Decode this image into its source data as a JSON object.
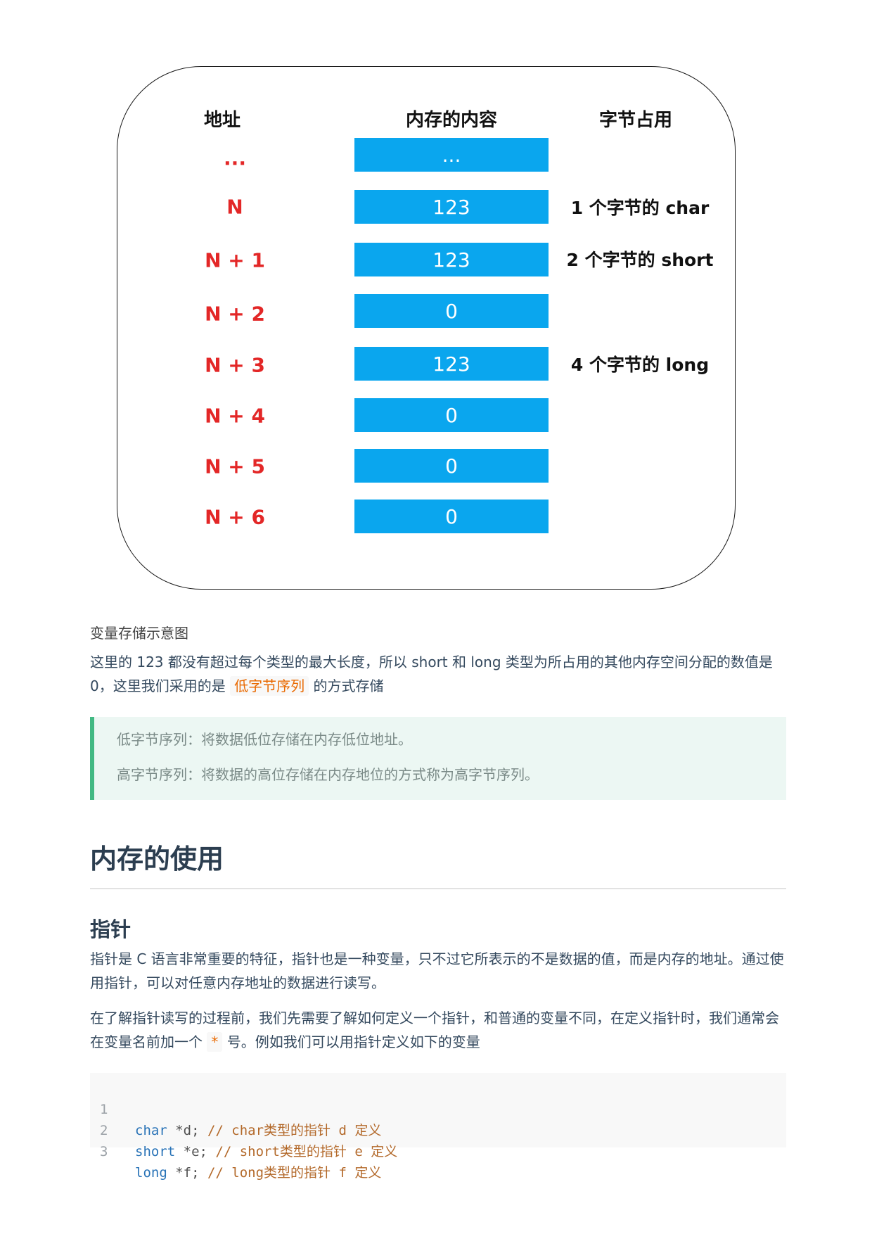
{
  "diagram": {
    "headers": {
      "address": "地址",
      "content": "内存的内容",
      "bytes": "字节占用"
    },
    "rows": [
      {
        "address": "...",
        "value": "..."
      },
      {
        "address": "N",
        "value": "123"
      },
      {
        "address": "N + 1",
        "value": "123"
      },
      {
        "address": "N + 2",
        "value": "0"
      },
      {
        "address": "N + 3",
        "value": "123"
      },
      {
        "address": "N + 4",
        "value": "0"
      },
      {
        "address": "N + 5",
        "value": "0"
      },
      {
        "address": "N + 6",
        "value": "0"
      }
    ],
    "byte_labels": {
      "char": "1 个字节的 char",
      "short": "2 个字节的 short",
      "long": "4 个字节的 long"
    },
    "colors": {
      "cell": "#0aa6ee",
      "address": "#e32727"
    }
  },
  "caption": "变量存储示意图",
  "para1": {
    "text_before": "这里的 123 都没有超过每个类型的最大长度，所以 short 和 long 类型为所占用的其他内存空间分配的数值是0，这里我们采用的是",
    "highlight": "低字节序列",
    "text_after": "的方式存储"
  },
  "quote": {
    "line1": "低字节序列：将数据低位存储在内存低位地址。",
    "line2": "高字节序列：将数据的高位存储在内存地位的方式称为高字节序列。"
  },
  "h2": "内存的使用",
  "h3": "指针",
  "para2": "指针是 C 语言非常重要的特征，指针也是一种变量，只不过它所表示的不是数据的值，而是内存的地址。通过使用指针，可以对任意内存地址的数据进行读写。",
  "para3": {
    "text_before": "在了解指针读写的过程前，我们先需要了解如何定义一个指针，和普通的变量不同，在定义指针时，我们通常会在变量名前加一个",
    "highlight": "*",
    "text_after": "号。例如我们可以用指针定义如下的变量"
  },
  "code": [
    {
      "num": "1",
      "kw": "char",
      "decl": " *d; ",
      "comment": "// char类型的指针 d 定义"
    },
    {
      "num": "2",
      "kw": "short",
      "decl": " *e; ",
      "comment": "// short类型的指针 e 定义"
    },
    {
      "num": "3",
      "kw": "long",
      "decl": " *f; ",
      "comment": "// long类型的指针 f 定义"
    }
  ]
}
